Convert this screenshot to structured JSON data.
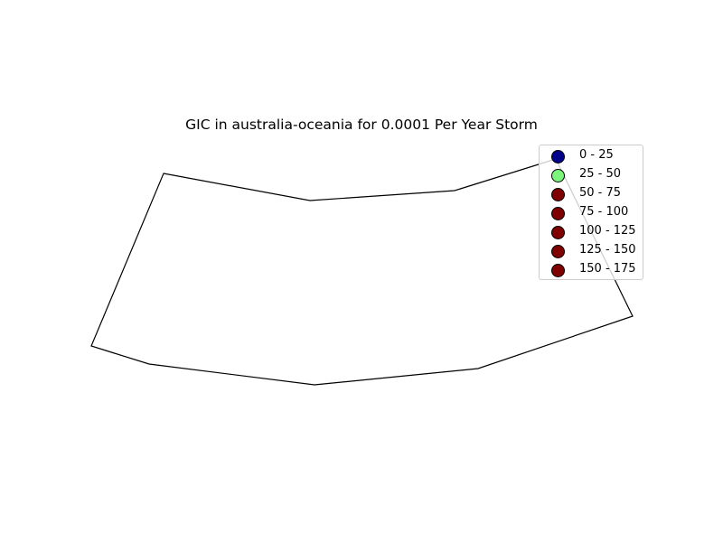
{
  "map": {
    "title": "GIC in australia-oceania for 0.0001 Per Year Storm",
    "outline_color": "#000000",
    "legend": {
      "entries": [
        {
          "label": "0 - 25",
          "color": "#00008b"
        },
        {
          "label": "25 - 50",
          "color": "#7cf57c"
        },
        {
          "label": "50 - 75",
          "color": "#7f0000"
        },
        {
          "label": "75 - 100",
          "color": "#7f0000"
        },
        {
          "label": "100 - 125",
          "color": "#7f0000"
        },
        {
          "label": "125 - 150",
          "color": "#7f0000"
        },
        {
          "label": "150 - 175",
          "color": "#7f0000"
        }
      ]
    }
  }
}
